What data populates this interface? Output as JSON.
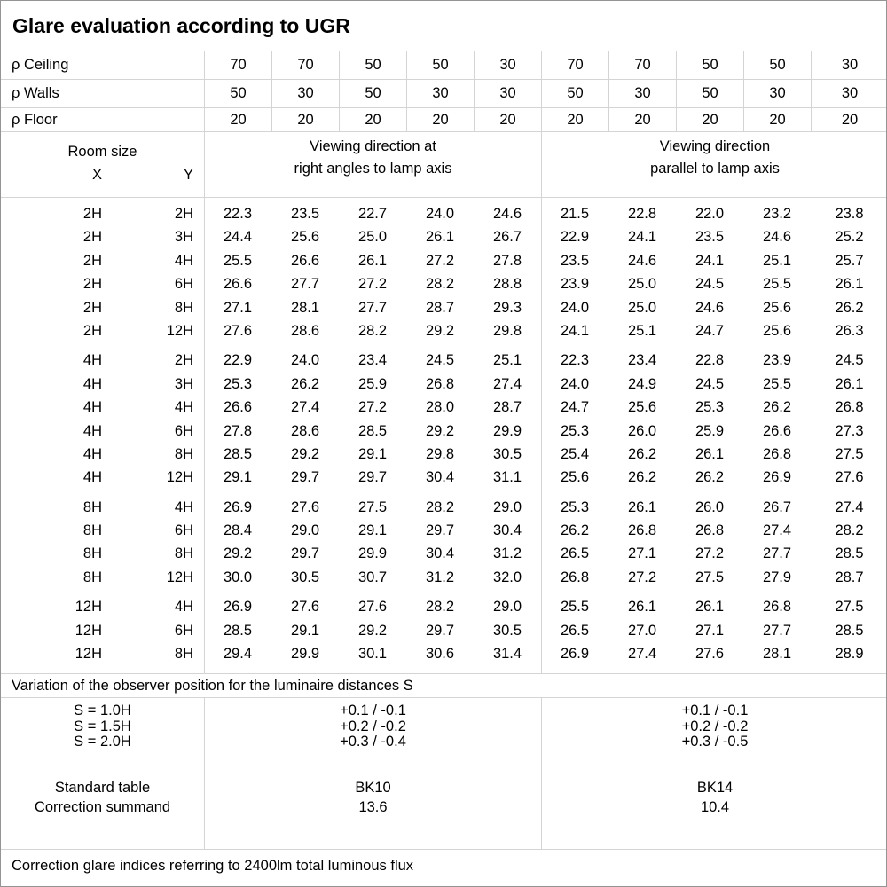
{
  "title": "Glare evaluation according to UGR",
  "reflectance": {
    "rows": [
      {
        "label": "ρ Ceiling",
        "values": [
          "70",
          "70",
          "50",
          "50",
          "30",
          "70",
          "70",
          "50",
          "50",
          "30"
        ]
      },
      {
        "label": "ρ Walls",
        "values": [
          "50",
          "30",
          "50",
          "30",
          "30",
          "50",
          "30",
          "50",
          "30",
          "30"
        ]
      },
      {
        "label": "ρ Floor",
        "values": [
          "20",
          "20",
          "20",
          "20",
          "20",
          "20",
          "20",
          "20",
          "20",
          "20"
        ]
      }
    ]
  },
  "header": {
    "room_size": "Room size",
    "x": "X",
    "y": "Y",
    "group1": [
      "Viewing direction at",
      "right angles to lamp axis"
    ],
    "group2": [
      "Viewing direction",
      "parallel to lamp axis"
    ]
  },
  "table": {
    "groups": [
      {
        "rows": [
          {
            "x": "2H",
            "y": "2H",
            "values": [
              "22.3",
              "23.5",
              "22.7",
              "24.0",
              "24.6",
              "21.5",
              "22.8",
              "22.0",
              "23.2",
              "23.8"
            ]
          },
          {
            "x": "2H",
            "y": "3H",
            "values": [
              "24.4",
              "25.6",
              "25.0",
              "26.1",
              "26.7",
              "22.9",
              "24.1",
              "23.5",
              "24.6",
              "25.2"
            ]
          },
          {
            "x": "2H",
            "y": "4H",
            "values": [
              "25.5",
              "26.6",
              "26.1",
              "27.2",
              "27.8",
              "23.5",
              "24.6",
              "24.1",
              "25.1",
              "25.7"
            ]
          },
          {
            "x": "2H",
            "y": "6H",
            "values": [
              "26.6",
              "27.7",
              "27.2",
              "28.2",
              "28.8",
              "23.9",
              "25.0",
              "24.5",
              "25.5",
              "26.1"
            ]
          },
          {
            "x": "2H",
            "y": "8H",
            "values": [
              "27.1",
              "28.1",
              "27.7",
              "28.7",
              "29.3",
              "24.0",
              "25.0",
              "24.6",
              "25.6",
              "26.2"
            ]
          },
          {
            "x": "2H",
            "y": "12H",
            "values": [
              "27.6",
              "28.6",
              "28.2",
              "29.2",
              "29.8",
              "24.1",
              "25.1",
              "24.7",
              "25.6",
              "26.3"
            ]
          }
        ]
      },
      {
        "rows": [
          {
            "x": "4H",
            "y": "2H",
            "values": [
              "22.9",
              "24.0",
              "23.4",
              "24.5",
              "25.1",
              "22.3",
              "23.4",
              "22.8",
              "23.9",
              "24.5"
            ]
          },
          {
            "x": "4H",
            "y": "3H",
            "values": [
              "25.3",
              "26.2",
              "25.9",
              "26.8",
              "27.4",
              "24.0",
              "24.9",
              "24.5",
              "25.5",
              "26.1"
            ]
          },
          {
            "x": "4H",
            "y": "4H",
            "values": [
              "26.6",
              "27.4",
              "27.2",
              "28.0",
              "28.7",
              "24.7",
              "25.6",
              "25.3",
              "26.2",
              "26.8"
            ]
          },
          {
            "x": "4H",
            "y": "6H",
            "values": [
              "27.8",
              "28.6",
              "28.5",
              "29.2",
              "29.9",
              "25.3",
              "26.0",
              "25.9",
              "26.6",
              "27.3"
            ]
          },
          {
            "x": "4H",
            "y": "8H",
            "values": [
              "28.5",
              "29.2",
              "29.1",
              "29.8",
              "30.5",
              "25.4",
              "26.2",
              "26.1",
              "26.8",
              "27.5"
            ]
          },
          {
            "x": "4H",
            "y": "12H",
            "values": [
              "29.1",
              "29.7",
              "29.7",
              "30.4",
              "31.1",
              "25.6",
              "26.2",
              "26.2",
              "26.9",
              "27.6"
            ]
          }
        ]
      },
      {
        "rows": [
          {
            "x": "8H",
            "y": "4H",
            "values": [
              "26.9",
              "27.6",
              "27.5",
              "28.2",
              "29.0",
              "25.3",
              "26.1",
              "26.0",
              "26.7",
              "27.4"
            ]
          },
          {
            "x": "8H",
            "y": "6H",
            "values": [
              "28.4",
              "29.0",
              "29.1",
              "29.7",
              "30.4",
              "26.2",
              "26.8",
              "26.8",
              "27.4",
              "28.2"
            ]
          },
          {
            "x": "8H",
            "y": "8H",
            "values": [
              "29.2",
              "29.7",
              "29.9",
              "30.4",
              "31.2",
              "26.5",
              "27.1",
              "27.2",
              "27.7",
              "28.5"
            ]
          },
          {
            "x": "8H",
            "y": "12H",
            "values": [
              "30.0",
              "30.5",
              "30.7",
              "31.2",
              "32.0",
              "26.8",
              "27.2",
              "27.5",
              "27.9",
              "28.7"
            ]
          }
        ]
      },
      {
        "rows": [
          {
            "x": "12H",
            "y": "4H",
            "values": [
              "26.9",
              "27.6",
              "27.6",
              "28.2",
              "29.0",
              "25.5",
              "26.1",
              "26.1",
              "26.8",
              "27.5"
            ]
          },
          {
            "x": "12H",
            "y": "6H",
            "values": [
              "28.5",
              "29.1",
              "29.2",
              "29.7",
              "30.5",
              "26.5",
              "27.0",
              "27.1",
              "27.7",
              "28.5"
            ]
          },
          {
            "x": "12H",
            "y": "8H",
            "values": [
              "29.4",
              "29.9",
              "30.1",
              "30.6",
              "31.4",
              "26.9",
              "27.4",
              "27.6",
              "28.1",
              "28.9"
            ]
          }
        ]
      }
    ]
  },
  "variation": {
    "note": "Variation of the observer position for the luminaire distances S",
    "s_labels": [
      "S = 1.0H",
      "S = 1.5H",
      "S = 2.0H"
    ],
    "group1": [
      "+0.1 / -0.1",
      "+0.2 / -0.2",
      "+0.3 / -0.4"
    ],
    "group2": [
      "+0.1 / -0.1",
      "+0.2 / -0.2",
      "+0.3 / -0.5"
    ]
  },
  "summary": {
    "labels": [
      "Standard table",
      "Correction summand"
    ],
    "group1": [
      "BK10",
      "13.6"
    ],
    "group2": [
      "BK14",
      "10.4"
    ]
  },
  "footer_note": "Correction glare indices referring to 2400lm total luminous flux",
  "colors": {
    "grid": "#d4d4d4",
    "outer_border": "#949494",
    "text": "#000000",
    "background": "#ffffff"
  }
}
